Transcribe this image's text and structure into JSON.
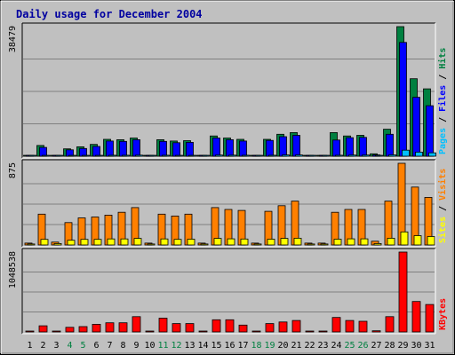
{
  "chart_data": {
    "type": "bar",
    "title": "Daily usage for December 2004",
    "categories": [
      "1",
      "2",
      "3",
      "4",
      "5",
      "6",
      "7",
      "8",
      "9",
      "10",
      "11",
      "12",
      "13",
      "14",
      "15",
      "16",
      "17",
      "18",
      "19",
      "20",
      "21",
      "22",
      "23",
      "24",
      "25",
      "26",
      "27",
      "28",
      "29",
      "30",
      "31"
    ],
    "weekend_days": [
      "4",
      "5",
      "11",
      "12",
      "18",
      "19",
      "25",
      "26"
    ],
    "panels": [
      {
        "id": "hits-files-pages",
        "ymax": 38479,
        "ymax_label": "38479",
        "legend_right": [
          "Pages",
          "Files",
          "Hits"
        ],
        "series": [
          {
            "name": "Hits",
            "color": "#008040",
            "values": [
              100,
              3200,
              150,
              2200,
              2800,
              3500,
              5000,
              4900,
              5400,
              100,
              4900,
              4500,
              4600,
              100,
              6000,
              5400,
              5000,
              100,
              5000,
              6500,
              7000,
              100,
              100,
              7000,
              6000,
              6200,
              700,
              8000,
              38479,
              23000,
              20000
            ]
          },
          {
            "name": "Files",
            "color": "#0000ff",
            "values": [
              50,
              2600,
              100,
              1900,
              2300,
              2900,
              4500,
              4400,
              4900,
              50,
              4400,
              4000,
              4100,
              50,
              5400,
              4900,
              4500,
              50,
              4700,
              5800,
              6200,
              50,
              50,
              4800,
              5500,
              5600,
              400,
              6500,
              33800,
              17500,
              15000
            ]
          },
          {
            "name": "Pages",
            "color": "#00c0ff",
            "values": [
              10,
              200,
              20,
              150,
              180,
              250,
              300,
              280,
              320,
              10,
              300,
              260,
              270,
              10,
              350,
              320,
              300,
              10,
              280,
              360,
              380,
              10,
              10,
              300,
              330,
              340,
              40,
              400,
              1800,
              1200,
              1000
            ]
          }
        ]
      },
      {
        "id": "visits-sites",
        "ymax": 875,
        "ymax_label": "875",
        "legend_right": [
          "Sites",
          "Visits"
        ],
        "series": [
          {
            "name": "Visits",
            "color": "#ff8000",
            "values": [
              20,
              330,
              30,
              240,
              290,
              300,
              320,
              350,
              400,
              20,
              330,
              310,
              330,
              20,
              400,
              380,
              370,
              20,
              360,
              420,
              470,
              20,
              20,
              350,
              380,
              380,
              40,
              470,
              875,
              620,
              510
            ]
          },
          {
            "name": "Sites",
            "color": "#ffff00",
            "values": [
              10,
              60,
              15,
              50,
              60,
              60,
              65,
              65,
              70,
              10,
              65,
              60,
              62,
              10,
              70,
              66,
              64,
              10,
              62,
              70,
              72,
              10,
              10,
              62,
              66,
              66,
              15,
              72,
              140,
              100,
              90
            ]
          }
        ]
      },
      {
        "id": "kbytes",
        "ymax": 1048538,
        "ymax_label": "1048538",
        "legend_right": [
          "KBytes"
        ],
        "series": [
          {
            "name": "KBytes",
            "color": "#ff0000",
            "values": [
              5000,
              80000,
              10000,
              60000,
              70000,
              100000,
              120000,
              120000,
              200000,
              5000,
              180000,
              110000,
              110000,
              5000,
              160000,
              160000,
              90000,
              5000,
              110000,
              130000,
              150000,
              5000,
              5000,
              190000,
              150000,
              140000,
              15000,
              200000,
              1048538,
              400000,
              360000
            ]
          }
        ]
      }
    ]
  }
}
